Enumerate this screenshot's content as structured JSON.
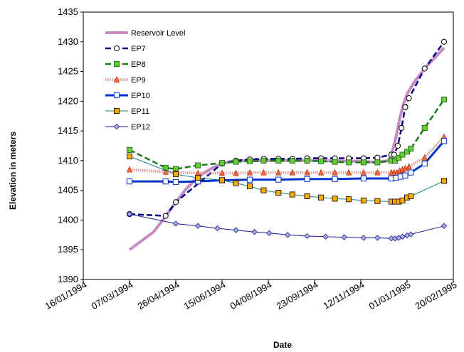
{
  "chart_data": {
    "type": "line",
    "title": "",
    "xlabel": "Date",
    "ylabel": "Elevation in meters",
    "x_tick_labels": [
      "16/01/1994",
      "07/03/1994",
      "26/04/1994",
      "15/06/1994",
      "04/08/1994",
      "23/09/1994",
      "12/11/1994",
      "01/01/1995",
      "20/02/1995"
    ],
    "y_ticks": [
      1390,
      1395,
      1400,
      1405,
      1410,
      1415,
      1420,
      1425,
      1430,
      1435
    ],
    "ylim": [
      1390,
      1435
    ],
    "xlim": [
      "16/01/1994",
      "20/02/1995"
    ],
    "grid": false,
    "legend_position": "top-left",
    "series": [
      {
        "name": "Reservoir Level",
        "color": "#c58ac2",
        "style": "thick-line",
        "marker": "none",
        "points": [
          [
            "07/03/1994",
            1395.0
          ],
          [
            "20/03/1994",
            1396.5
          ],
          [
            "02/04/1994",
            1398.0
          ],
          [
            "12/04/1994",
            1400.0
          ],
          [
            "26/04/1994",
            1403.0
          ],
          [
            "06/05/1994",
            1405.0
          ],
          [
            "15/05/1994",
            1406.5
          ],
          [
            "25/05/1994",
            1407.8
          ],
          [
            "05/06/1994",
            1408.8
          ],
          [
            "15/06/1994",
            1409.5
          ],
          [
            "25/06/1994",
            1409.9
          ],
          [
            "05/07/1994",
            1410.0
          ],
          [
            "04/08/1994",
            1410.0
          ],
          [
            "23/09/1994",
            1410.0
          ],
          [
            "12/11/1994",
            1409.9
          ],
          [
            "30/11/1994",
            1409.7
          ],
          [
            "12/12/1994",
            1410.0
          ],
          [
            "16/12/1994",
            1411.5
          ],
          [
            "20/12/1994",
            1414.0
          ],
          [
            "24/12/1994",
            1417.0
          ],
          [
            "28/12/1994",
            1419.5
          ],
          [
            "02/01/1995",
            1421.5
          ],
          [
            "10/01/1995",
            1423.5
          ],
          [
            "20/01/1995",
            1425.5
          ],
          [
            "01/02/1995",
            1427.5
          ],
          [
            "10/02/1995",
            1429.0
          ]
        ]
      },
      {
        "name": "EP7",
        "color": "#000080",
        "style": "dash",
        "marker": "open-circle",
        "points": [
          [
            "07/03/1994",
            1401.0
          ],
          [
            "15/04/1994",
            1400.7
          ],
          [
            "26/04/1994",
            1403.0
          ],
          [
            "15/06/1994",
            1409.5
          ],
          [
            "30/06/1994",
            1410.0
          ],
          [
            "15/07/1994",
            1410.2
          ],
          [
            "30/07/1994",
            1410.3
          ],
          [
            "15/08/1994",
            1410.3
          ],
          [
            "30/08/1994",
            1410.3
          ],
          [
            "15/09/1994",
            1410.4
          ],
          [
            "30/09/1994",
            1410.4
          ],
          [
            "15/10/1994",
            1410.4
          ],
          [
            "30/10/1994",
            1410.4
          ],
          [
            "15/11/1994",
            1410.4
          ],
          [
            "30/11/1994",
            1410.5
          ],
          [
            "15/12/1994",
            1411.0
          ],
          [
            "18/12/1994",
            1411.0
          ],
          [
            "22/12/1994",
            1412.5
          ],
          [
            "26/12/1994",
            1415.5
          ],
          [
            "30/12/1994",
            1419.0
          ],
          [
            "03/01/1995",
            1420.5
          ],
          [
            "20/01/1995",
            1425.5
          ],
          [
            "10/02/1995",
            1430.0
          ]
        ]
      },
      {
        "name": "EP8",
        "color": "#1a7a1a",
        "style": "dash",
        "marker": "filled-square",
        "points": [
          [
            "07/03/1994",
            1411.8
          ],
          [
            "15/04/1994",
            1408.8
          ],
          [
            "26/04/1994",
            1408.6
          ],
          [
            "20/05/1994",
            1409.2
          ],
          [
            "15/06/1994",
            1409.6
          ],
          [
            "30/06/1994",
            1409.8
          ],
          [
            "15/07/1994",
            1409.9
          ],
          [
            "30/07/1994",
            1410.0
          ],
          [
            "15/08/1994",
            1410.0
          ],
          [
            "30/08/1994",
            1410.0
          ],
          [
            "15/09/1994",
            1410.0
          ],
          [
            "30/09/1994",
            1409.9
          ],
          [
            "15/10/1994",
            1409.8
          ],
          [
            "30/10/1994",
            1409.7
          ],
          [
            "15/11/1994",
            1409.7
          ],
          [
            "30/11/1994",
            1409.7
          ],
          [
            "15/12/1994",
            1410.0
          ],
          [
            "19/12/1994",
            1410.0
          ],
          [
            "23/12/1994",
            1410.5
          ],
          [
            "27/12/1994",
            1411.0
          ],
          [
            "01/01/1995",
            1411.5
          ],
          [
            "05/01/1995",
            1412.0
          ],
          [
            "20/01/1995",
            1415.5
          ],
          [
            "10/02/1995",
            1420.3
          ]
        ]
      },
      {
        "name": "EP9",
        "color": "#d99a9a",
        "style": "thick-dotted",
        "marker": "triangle",
        "points": [
          [
            "07/03/1994",
            1408.5
          ],
          [
            "15/04/1994",
            1408.1
          ],
          [
            "26/04/1994",
            1408.0
          ],
          [
            "20/05/1994",
            1407.9
          ],
          [
            "15/06/1994",
            1407.9
          ],
          [
            "30/06/1994",
            1407.9
          ],
          [
            "15/07/1994",
            1408.0
          ],
          [
            "30/07/1994",
            1408.0
          ],
          [
            "15/08/1994",
            1408.0
          ],
          [
            "30/08/1994",
            1408.0
          ],
          [
            "15/09/1994",
            1408.0
          ],
          [
            "30/09/1994",
            1408.0
          ],
          [
            "15/10/1994",
            1408.0
          ],
          [
            "30/10/1994",
            1408.0
          ],
          [
            "15/11/1994",
            1408.0
          ],
          [
            "30/11/1994",
            1408.0
          ],
          [
            "15/12/1994",
            1408.0
          ],
          [
            "18/12/1994",
            1408.0
          ],
          [
            "21/12/1994",
            1408.0
          ],
          [
            "24/12/1994",
            1408.3
          ],
          [
            "27/12/1994",
            1408.5
          ],
          [
            "30/12/1994",
            1408.7
          ],
          [
            "03/01/1995",
            1409.0
          ],
          [
            "20/01/1995",
            1410.5
          ],
          [
            "10/02/1995",
            1414.0
          ]
        ]
      },
      {
        "name": "EP10",
        "color": "#0033cc",
        "style": "thick-line",
        "marker": "open-square",
        "points": [
          [
            "07/03/1994",
            1406.5
          ],
          [
            "15/04/1994",
            1406.5
          ],
          [
            "26/04/1994",
            1406.4
          ],
          [
            "20/05/1994",
            1406.5
          ],
          [
            "15/06/1994",
            1406.7
          ],
          [
            "15/07/1994",
            1406.8
          ],
          [
            "15/08/1994",
            1406.8
          ],
          [
            "15/09/1994",
            1406.9
          ],
          [
            "15/10/1994",
            1406.9
          ],
          [
            "15/11/1994",
            1407.0
          ],
          [
            "15/12/1994",
            1407.0
          ],
          [
            "20/12/1994",
            1407.1
          ],
          [
            "25/12/1994",
            1407.3
          ],
          [
            "30/12/1994",
            1407.5
          ],
          [
            "05/01/1995",
            1408.0
          ],
          [
            "20/01/1995",
            1409.5
          ],
          [
            "10/02/1995",
            1413.3
          ]
        ]
      },
      {
        "name": "EP11",
        "color": "#1a8080",
        "style": "line",
        "marker": "filled-square",
        "points": [
          [
            "07/03/1994",
            1410.7
          ],
          [
            "26/04/1994",
            1407.7
          ],
          [
            "20/05/1994",
            1407.1
          ],
          [
            "15/06/1994",
            1406.7
          ],
          [
            "30/06/1994",
            1406.2
          ],
          [
            "15/07/1994",
            1405.7
          ],
          [
            "30/07/1994",
            1405.0
          ],
          [
            "15/08/1994",
            1404.6
          ],
          [
            "30/08/1994",
            1404.3
          ],
          [
            "15/09/1994",
            1404.0
          ],
          [
            "30/09/1994",
            1403.8
          ],
          [
            "15/10/1994",
            1403.6
          ],
          [
            "30/10/1994",
            1403.5
          ],
          [
            "15/11/1994",
            1403.3
          ],
          [
            "30/11/1994",
            1403.2
          ],
          [
            "15/12/1994",
            1403.1
          ],
          [
            "19/12/1994",
            1403.1
          ],
          [
            "23/12/1994",
            1403.1
          ],
          [
            "27/12/1994",
            1403.3
          ],
          [
            "01/01/1995",
            1403.8
          ],
          [
            "05/01/1995",
            1404.0
          ],
          [
            "10/02/1995",
            1406.6
          ]
        ]
      },
      {
        "name": "EP12",
        "color": "#1a1a99",
        "style": "line",
        "marker": "diamond",
        "points": [
          [
            "07/03/1994",
            1401.0
          ],
          [
            "26/04/1994",
            1399.4
          ],
          [
            "20/05/1994",
            1399.0
          ],
          [
            "10/06/1994",
            1398.6
          ],
          [
            "30/06/1994",
            1398.3
          ],
          [
            "20/07/1994",
            1398.0
          ],
          [
            "05/08/1994",
            1397.8
          ],
          [
            "25/08/1994",
            1397.5
          ],
          [
            "15/09/1994",
            1397.3
          ],
          [
            "05/10/1994",
            1397.2
          ],
          [
            "25/10/1994",
            1397.1
          ],
          [
            "15/11/1994",
            1397.0
          ],
          [
            "30/11/1994",
            1397.0
          ],
          [
            "15/12/1994",
            1396.9
          ],
          [
            "19/12/1994",
            1396.9
          ],
          [
            "23/12/1994",
            1397.0
          ],
          [
            "27/12/1994",
            1397.2
          ],
          [
            "01/01/1995",
            1397.4
          ],
          [
            "05/01/1995",
            1397.6
          ],
          [
            "10/02/1995",
            1399.0
          ]
        ]
      }
    ]
  }
}
